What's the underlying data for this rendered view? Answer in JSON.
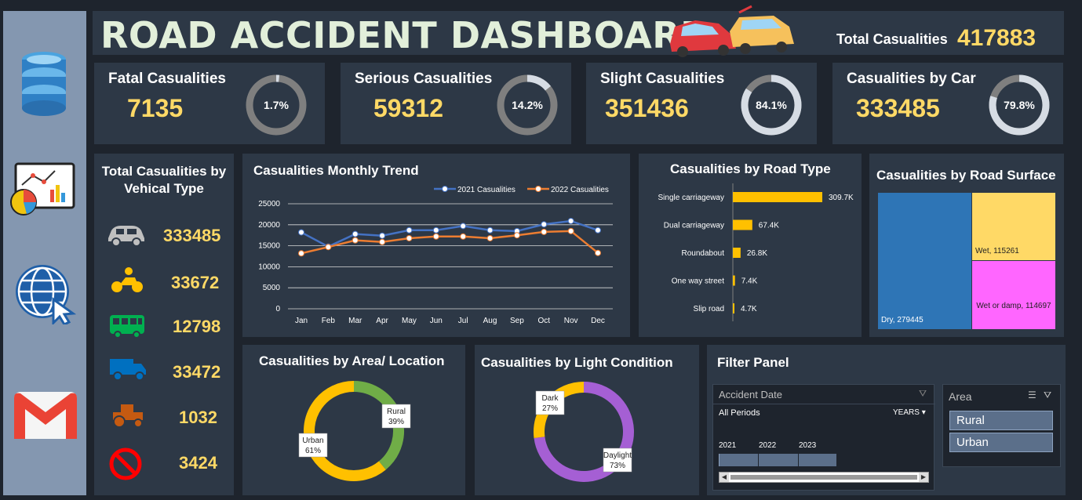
{
  "title": "ROAD ACCIDENT DASHBOARD",
  "total": {
    "label": "Total Casualities",
    "value": "417883"
  },
  "kpis": [
    {
      "label": "Fatal Casualities",
      "value": "7135",
      "pct_label": "1.7%",
      "pct": 1.7
    },
    {
      "label": "Serious Casualities",
      "value": "59312",
      "pct_label": "14.2%",
      "pct": 14.2
    },
    {
      "label": "Slight Casualities",
      "value": "351436",
      "pct_label": "84.1%",
      "pct": 84.1
    },
    {
      "label": "Casualities by Car",
      "value": "333485",
      "pct_label": "79.8%",
      "pct": 79.8
    }
  ],
  "vehicle": {
    "title_line1": "Total Casualities by",
    "title_line2": "Vehical Type",
    "items": [
      {
        "icon": "car-icon",
        "value": "333485"
      },
      {
        "icon": "bike-icon",
        "value": "33672"
      },
      {
        "icon": "bus-icon",
        "value": "12798"
      },
      {
        "icon": "van-icon",
        "value": "33472"
      },
      {
        "icon": "tractor-icon",
        "value": "1032"
      },
      {
        "icon": "other-icon",
        "value": "3424"
      }
    ]
  },
  "sidebar_icons": [
    "database-icon",
    "analytics-icon",
    "globe-icon",
    "gmail-icon"
  ],
  "chart_data": [
    {
      "type": "line",
      "title": "Casualities Monthly Trend",
      "categories": [
        "Jan",
        "Feb",
        "Mar",
        "Apr",
        "May",
        "Jun",
        "Jul",
        "Aug",
        "Sep",
        "Oct",
        "Nov",
        "Dec"
      ],
      "series": [
        {
          "name": "2021 Casualities",
          "color": "#4472c4",
          "values": [
            18200,
            14800,
            17800,
            17400,
            18700,
            18700,
            19700,
            18700,
            18500,
            20100,
            20900,
            18700
          ]
        },
        {
          "name": "2022 Casualities",
          "color": "#ed7d31",
          "values": [
            13200,
            14700,
            16300,
            15900,
            16800,
            17200,
            17200,
            16800,
            17500,
            18300,
            18500,
            13300
          ]
        }
      ],
      "yticks": [
        "25000",
        "20000",
        "15000",
        "10000",
        "5000",
        "0"
      ],
      "ylim": [
        0,
        25000
      ],
      "legend": "top-right"
    },
    {
      "type": "bar",
      "title": "Casualities by Road Type",
      "categories": [
        "Single carriageway",
        "Dual carriageway",
        "Roundabout",
        "One way street",
        "Slip road"
      ],
      "values": [
        309.7,
        67.4,
        26.8,
        7.4,
        4.7
      ],
      "labels": [
        "309.7K",
        "67.4K",
        "26.8K",
        "7.4K",
        "4.7K"
      ],
      "color": "#ffc000"
    },
    {
      "type": "heatmap",
      "title": "Casualities by Road Surface",
      "items": [
        {
          "label": "Dry, 279445",
          "value": 279445,
          "color": "#2e75b6"
        },
        {
          "label": "Wet, 115261",
          "value": 115261,
          "color": "#ffd966"
        },
        {
          "label": "Wet or damp, 114697",
          "value": 114697,
          "color": "#ff66ff"
        }
      ]
    },
    {
      "type": "pie",
      "title": "Casualities by Area/ Location",
      "slices": [
        {
          "name": "Rural",
          "pct": "39%",
          "value": 39,
          "color": "#70ad47"
        },
        {
          "name": "Urban",
          "pct": "61%",
          "value": 61,
          "color": "#ffc000"
        }
      ]
    },
    {
      "type": "pie",
      "title": "Casualities by Light Condition",
      "slices": [
        {
          "name": "Daylight",
          "pct": "73%",
          "value": 73,
          "color": "#a55fd4"
        },
        {
          "name": "Dark",
          "pct": "27%",
          "value": 27,
          "color": "#ffc000"
        }
      ]
    }
  ],
  "filter": {
    "title": "Filter Panel",
    "date_header": "Accident Date",
    "all_periods": "All Periods",
    "years": "YEARS",
    "year_labels": [
      "2021",
      "2022",
      "2023"
    ],
    "area_header": "Area",
    "area_options": [
      "Rural",
      "Urban"
    ]
  }
}
